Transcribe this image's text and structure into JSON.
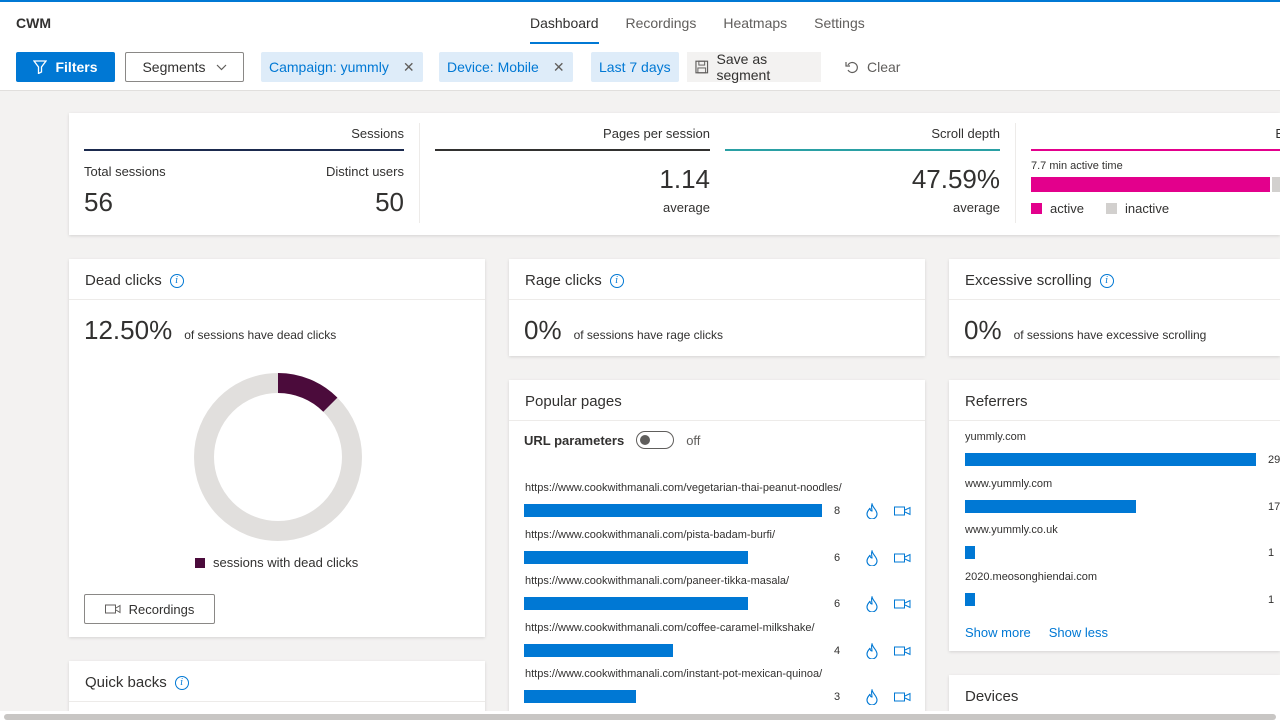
{
  "app": {
    "brand": "CWM"
  },
  "nav": {
    "tabs": [
      "Dashboard",
      "Recordings",
      "Heatmaps",
      "Settings"
    ]
  },
  "toolbar": {
    "filters": "Filters",
    "segments": "Segments",
    "chips": [
      "Campaign: yummly",
      "Device: Mobile",
      "Last 7 days"
    ],
    "save_segment": "Save as segment",
    "clear": "Clear"
  },
  "summary": {
    "sessions_header": "Sessions",
    "total_sessions_label": "Total sessions",
    "total_sessions": "56",
    "distinct_users_label": "Distinct users",
    "distinct_users": "50",
    "pps_header": "Pages per session",
    "pps_value": "1.14",
    "pps_sub": "average",
    "scroll_header": "Scroll depth",
    "scroll_value": "47.59%",
    "scroll_sub": "average",
    "engagement_header": "E",
    "active_time": "7.7 min active time",
    "active_fraction": 0.96,
    "legend_active": "active",
    "legend_inactive": "inactive",
    "colors": {
      "sessions": "#1b2a4e",
      "pps": "#323130",
      "scroll": "#2aa0a4",
      "engagement": "#e3008c",
      "inactive": "#d2d0ce"
    }
  },
  "dead_clicks": {
    "title": "Dead clicks",
    "value": "12.50%",
    "desc": "of sessions have dead clicks",
    "fraction": 0.125,
    "legend": "sessions with dead clicks",
    "button": "Recordings",
    "color": "#4b0b3b"
  },
  "quick_backs": {
    "title": "Quick backs"
  },
  "rage_clicks": {
    "title": "Rage clicks",
    "value": "0%",
    "desc": "of sessions have rage clicks"
  },
  "excessive_scrolling": {
    "title": "Excessive scrolling",
    "value": "0%",
    "desc": "of sessions have excessive scrolling"
  },
  "popular_pages": {
    "title": "Popular pages",
    "toggle_label": "URL parameters",
    "toggle_state": "off",
    "pages": [
      {
        "url": "https://www.cookwithmanali.com/vegetarian-thai-peanut-noodles/",
        "count": 8
      },
      {
        "url": "https://www.cookwithmanali.com/pista-badam-burfi/",
        "count": 6
      },
      {
        "url": "https://www.cookwithmanali.com/paneer-tikka-masala/",
        "count": 6
      },
      {
        "url": "https://www.cookwithmanali.com/coffee-caramel-milkshake/",
        "count": 4
      },
      {
        "url": "https://www.cookwithmanali.com/instant-pot-mexican-quinoa/",
        "count": 3
      }
    ]
  },
  "referrers": {
    "title": "Referrers",
    "items": [
      {
        "name": "yummly.com",
        "count": 29
      },
      {
        "name": "www.yummly.com",
        "count": 17
      },
      {
        "name": "www.yummly.co.uk",
        "count": 1
      },
      {
        "name": "2020.meosonghiendai.com",
        "count": 1
      }
    ],
    "show_more": "Show more",
    "show_less": "Show less"
  },
  "devices": {
    "title": "Devices"
  }
}
